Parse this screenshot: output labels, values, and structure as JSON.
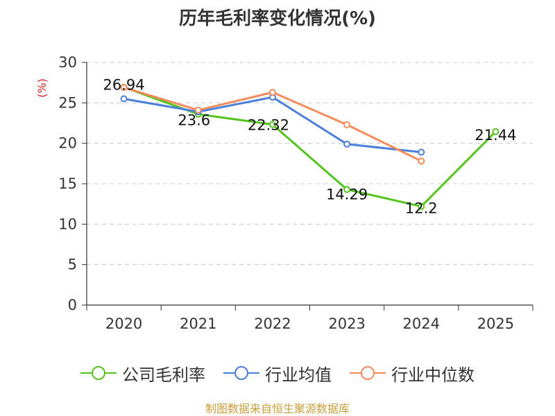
{
  "chart_data": {
    "type": "line",
    "title": "历年毛利率变化情况(%)",
    "ylabel": "(%)",
    "xlabel": "",
    "categories": [
      "2020",
      "2021",
      "2022",
      "2023",
      "2024",
      "2025"
    ],
    "ylim": [
      0,
      30
    ],
    "yticks": [
      0,
      5,
      10,
      15,
      20,
      25,
      30
    ],
    "grid": true,
    "legend_position": "bottom",
    "series": [
      {
        "name": "公司毛利率",
        "color": "#52c41a",
        "values": [
          26.94,
          23.6,
          22.32,
          14.29,
          12.2,
          21.44
        ],
        "labels": [
          "26.94",
          "23.6",
          "22.32",
          "14.29",
          "12.2",
          "21.44"
        ]
      },
      {
        "name": "行业均值",
        "color": "#4a7fdc",
        "values": [
          25.5,
          23.9,
          25.7,
          19.9,
          18.9,
          null
        ]
      },
      {
        "name": "行业中位数",
        "color": "#f58b5a",
        "values": [
          26.9,
          24.1,
          26.3,
          22.3,
          17.8,
          null
        ]
      }
    ],
    "source": "制图数据来自恒生聚源数据库"
  }
}
